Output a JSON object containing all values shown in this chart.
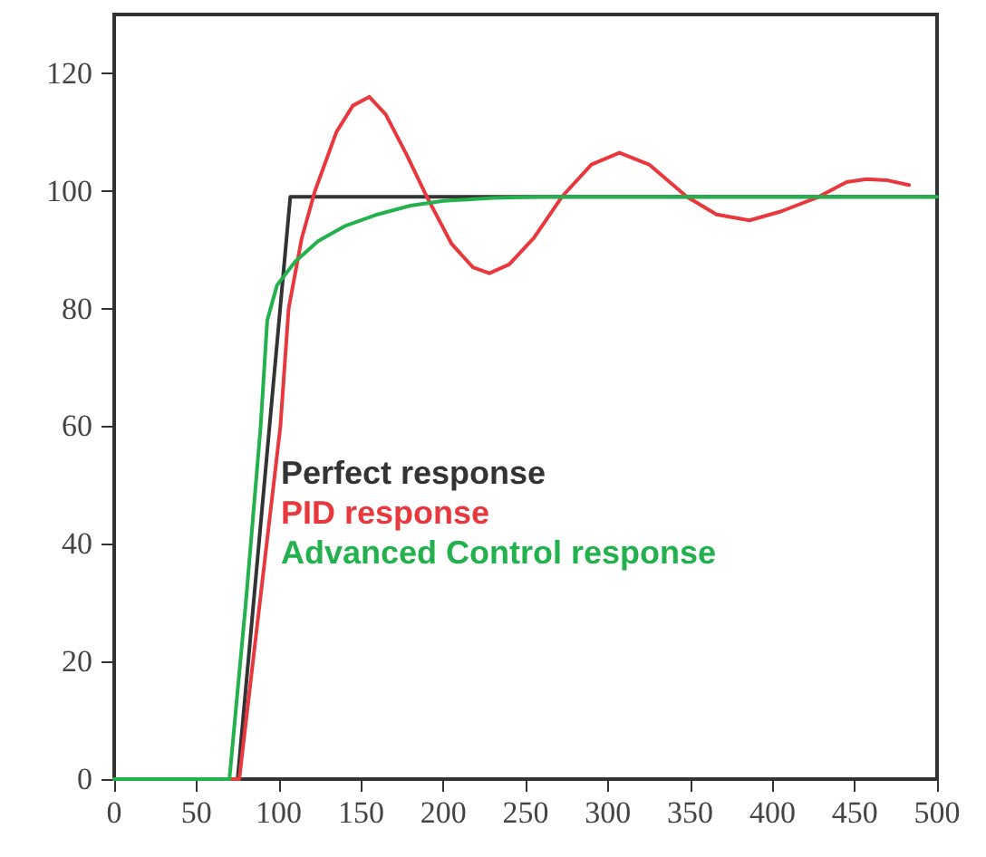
{
  "chart_data": {
    "type": "line",
    "series": [
      {
        "name": "Perfect response",
        "color": "#333333",
        "x": [
          0,
          75,
          107,
          500
        ],
        "values": [
          0,
          0,
          99,
          99
        ]
      },
      {
        "name": "PID response",
        "color": "#e8383d",
        "x": [
          0,
          76,
          101,
          106,
          114,
          122,
          135,
          145,
          155,
          165,
          178,
          190,
          205,
          218,
          228,
          240,
          255,
          272,
          290,
          307,
          325,
          348,
          366,
          386,
          405,
          428,
          445,
          457,
          470,
          483
        ],
        "values": [
          0,
          0,
          60,
          80,
          92,
          100,
          110,
          114.5,
          116,
          113,
          106,
          99,
          91,
          87,
          86,
          87.5,
          92,
          99,
          104.5,
          106.5,
          104.5,
          99,
          96,
          95,
          96.5,
          99,
          101.5,
          102,
          101.8,
          101
        ]
      },
      {
        "name": "Advanced Control response",
        "color": "#22b14c",
        "x": [
          0,
          70,
          80,
          89,
          93,
          99,
          110,
          124,
          140,
          160,
          180,
          200,
          230,
          260,
          500
        ],
        "values": [
          0,
          0,
          30,
          60,
          78,
          84,
          88,
          91.5,
          94,
          96,
          97.5,
          98.3,
          98.8,
          99,
          99
        ]
      }
    ],
    "xlim": [
      0,
      500
    ],
    "xticks": [
      0,
      50,
      100,
      150,
      200,
      250,
      300,
      350,
      400,
      450,
      500
    ],
    "ylim": [
      0,
      130
    ],
    "yticks": [
      0,
      20,
      40,
      60,
      80,
      100,
      120
    ],
    "legend": "left",
    "marker": "none",
    "line_style": "solid",
    "grid": false
  }
}
